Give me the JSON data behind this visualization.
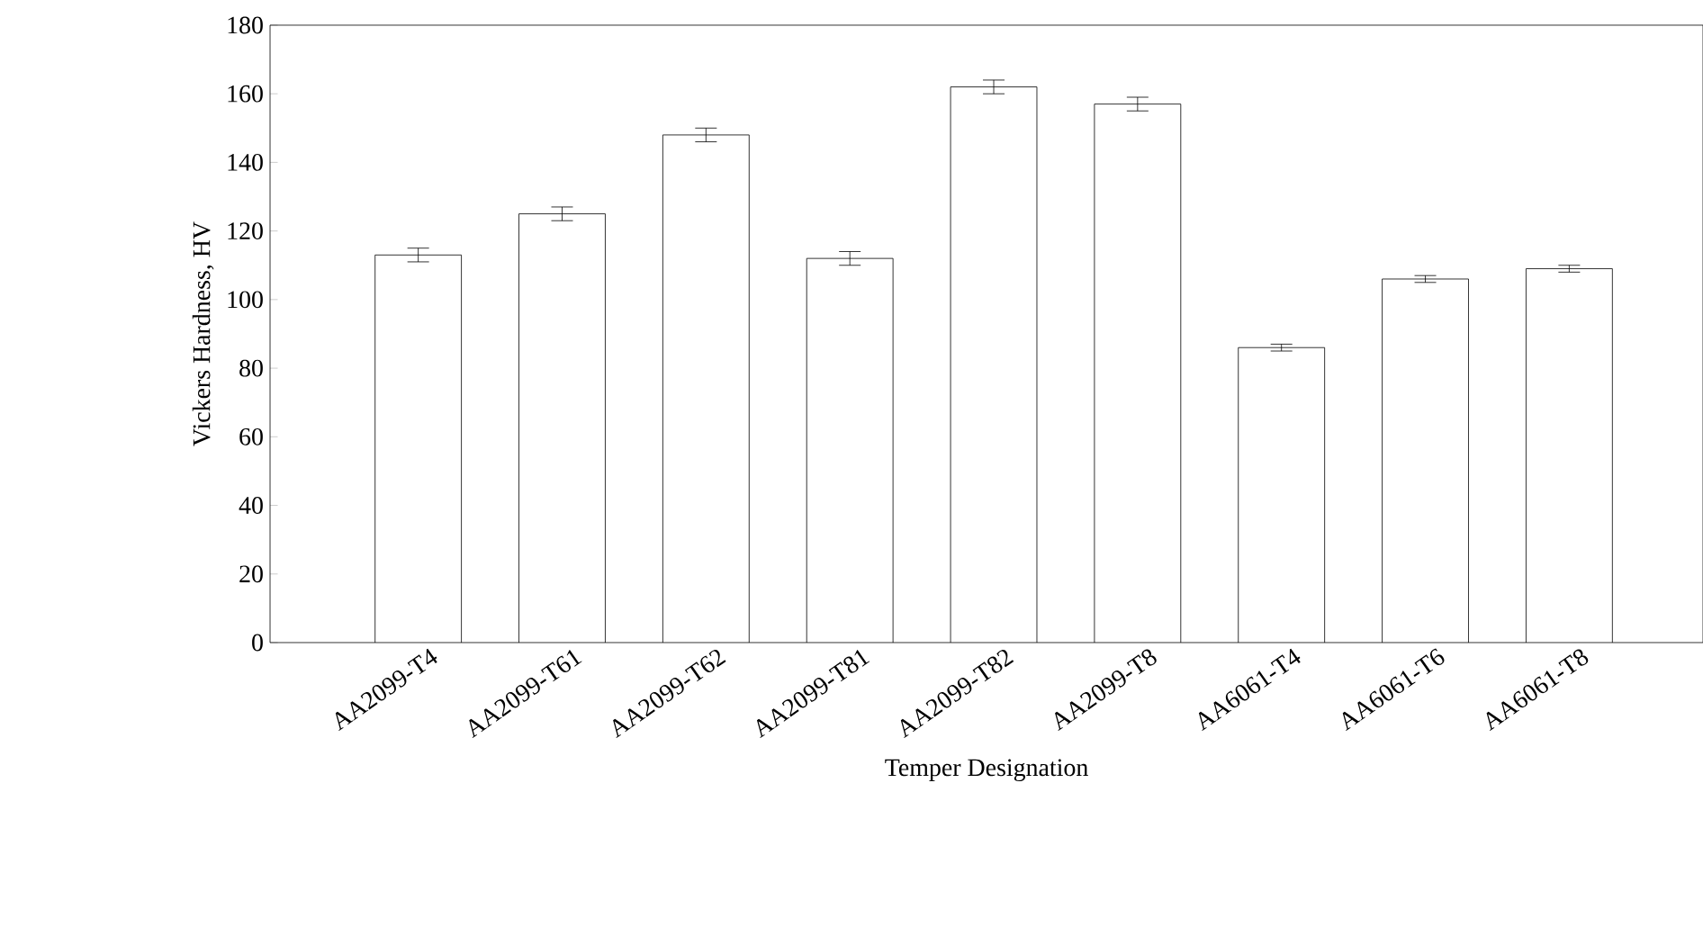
{
  "chart_data": {
    "type": "bar",
    "xlabel": "Temper Designation",
    "ylabel": "Vickers Hardness, HV",
    "categories": [
      "AA2099-T4",
      "AA2099-T61",
      "AA2099-T62",
      "AA2099-T81",
      "AA2099-T82",
      "AA2099-T8",
      "AA6061-T4",
      "AA6061-T6",
      "AA6061-T8"
    ],
    "values": [
      113,
      125,
      148,
      112,
      162,
      157,
      86,
      106,
      109
    ],
    "errors": [
      2,
      2,
      2,
      2,
      2,
      2,
      1,
      1,
      1
    ],
    "color": "#ffffff",
    "ylim": [
      0,
      180
    ],
    "yticks": [
      0,
      20,
      40,
      60,
      80,
      100,
      120,
      140,
      160,
      180
    ],
    "grid": false
  }
}
